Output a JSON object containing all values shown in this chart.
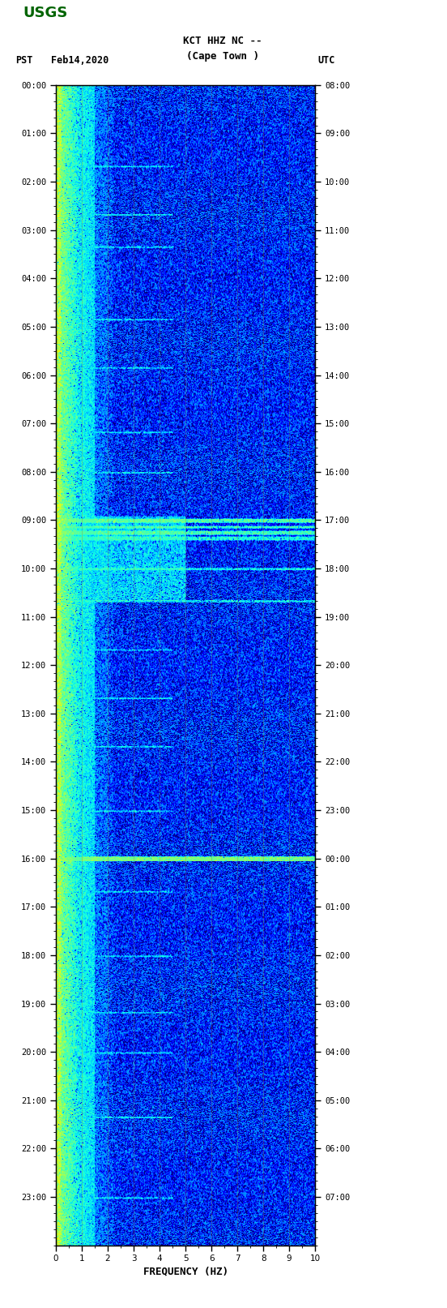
{
  "title_line1": "KCT HHZ NC --",
  "title_line2": "(Cape Town )",
  "label_left": "PST",
  "label_date": "Feb14,2020",
  "label_right": "UTC",
  "xlabel": "FREQUENCY (HZ)",
  "x_ticks": [
    0,
    1,
    2,
    3,
    4,
    5,
    6,
    7,
    8,
    9,
    10
  ],
  "freq_max": 10.0,
  "time_hours": 24,
  "pst_times": [
    "00:00",
    "01:00",
    "02:00",
    "03:00",
    "04:00",
    "05:00",
    "06:00",
    "07:00",
    "08:00",
    "09:00",
    "10:00",
    "11:00",
    "12:00",
    "13:00",
    "14:00",
    "15:00",
    "16:00",
    "17:00",
    "18:00",
    "19:00",
    "20:00",
    "21:00",
    "22:00",
    "23:00"
  ],
  "utc_times": [
    "08:00",
    "09:00",
    "10:00",
    "11:00",
    "12:00",
    "13:00",
    "14:00",
    "15:00",
    "16:00",
    "17:00",
    "18:00",
    "19:00",
    "20:00",
    "21:00",
    "22:00",
    "23:00",
    "00:00",
    "01:00",
    "02:00",
    "03:00",
    "04:00",
    "05:00",
    "06:00",
    "07:00"
  ],
  "n_time": 1440,
  "n_freq": 400,
  "vmin": -2.5,
  "vmax": 3.5,
  "gamma": 0.35,
  "event_times": [
    540,
    548,
    555,
    562,
    600,
    640,
    960
  ],
  "event_strengths": [
    4.0,
    2.5,
    3.0,
    1.5,
    1.2,
    0.8,
    3.5
  ],
  "subtle_times": [
    100,
    160,
    200,
    290,
    350,
    430,
    480,
    700,
    760,
    820,
    900,
    1000,
    1080,
    1150,
    1200,
    1280,
    1380
  ],
  "grid_color": "#808040",
  "grid_alpha": 0.45,
  "grid_linewidth": 0.5,
  "tick_fontsize": 7.5,
  "xlabel_fontsize": 9,
  "title_fontsize": 9,
  "header_fontsize": 8.5,
  "logo_green": "#006400"
}
